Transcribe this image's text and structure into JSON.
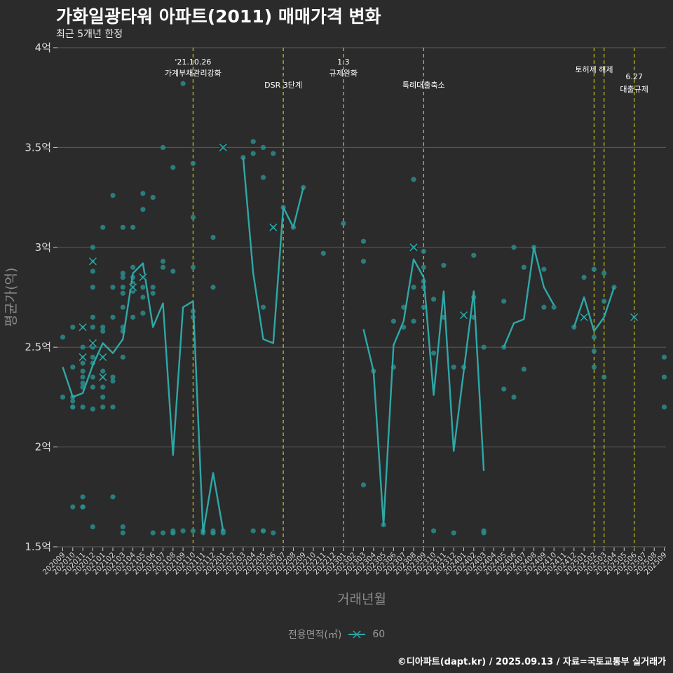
{
  "title": "가화일광타워 아파트(2011) 매매가격 변화",
  "subtitle": "최근 5개년 한정",
  "caption": "©디아파트(dapt.kr) / 2025.09.13 / 자료=국토교통부 실거래가",
  "legend": {
    "title": "전용면적(㎡)",
    "label": "60"
  },
  "colors": {
    "background": "#2b2b2b",
    "series": "#2fa7a7",
    "point": "#2b8c8c",
    "grid": "#5d5d5d",
    "event": "#c8c81e",
    "highlight": "#1a1a1a"
  },
  "chart_data": {
    "type": "line",
    "title": "가화일광타워 아파트(2011) 매매가격 변화",
    "xlabel": "거래년월",
    "ylabel": "평균가(억)",
    "ylim": [
      1.5,
      4.0
    ],
    "yticks": [
      {
        "value": 1.5,
        "label": "1.5억"
      },
      {
        "value": 2.0,
        "label": "2억"
      },
      {
        "value": 2.5,
        "label": "2.5억"
      },
      {
        "value": 3.0,
        "label": "3억"
      },
      {
        "value": 3.5,
        "label": "3.5억"
      },
      {
        "value": 4.0,
        "label": "4억"
      }
    ],
    "categories": [
      "202009",
      "202010",
      "202011",
      "202012",
      "202101",
      "202102",
      "202103",
      "202104",
      "202105",
      "202106",
      "202107",
      "202108",
      "202109",
      "202110",
      "202111",
      "202112",
      "202201",
      "202202",
      "202203",
      "202204",
      "202205",
      "202206",
      "202207",
      "202208",
      "202209",
      "202210",
      "202211",
      "202212",
      "202301",
      "202302",
      "202303",
      "202304",
      "202305",
      "202306",
      "202307",
      "202308",
      "202309",
      "202310",
      "202311",
      "202312",
      "202401",
      "202402",
      "202403",
      "202404",
      "202405",
      "202406",
      "202407",
      "202408",
      "202409",
      "202410",
      "202411",
      "202412",
      "202501",
      "202502",
      "202503",
      "202504",
      "202505",
      "202506",
      "202507",
      "202508",
      "202509"
    ],
    "series": [
      {
        "name": "60",
        "values": [
          2.4,
          2.25,
          2.27,
          2.41,
          2.52,
          2.47,
          2.54,
          2.87,
          2.92,
          2.6,
          2.72,
          1.96,
          2.7,
          2.73,
          1.57,
          1.87,
          1.58,
          null,
          3.45,
          2.87,
          2.54,
          2.52,
          3.2,
          3.1,
          3.3,
          null,
          null,
          null,
          null,
          null,
          2.59,
          2.38,
          1.61,
          2.51,
          2.63,
          2.94,
          2.85,
          2.26,
          2.78,
          1.98,
          2.38,
          2.78,
          1.88,
          null,
          2.5,
          2.62,
          2.64,
          3.0,
          2.8,
          2.71,
          null,
          2.6,
          2.75,
          2.58,
          2.65,
          2.8,
          null,
          null,
          null,
          null,
          null
        ]
      }
    ],
    "points": [
      [
        0,
        2.55
      ],
      [
        0,
        2.25
      ],
      [
        1,
        2.6
      ],
      [
        1,
        2.4
      ],
      [
        1,
        2.25
      ],
      [
        1,
        2.23
      ],
      [
        1,
        2.2
      ],
      [
        1,
        2.2
      ],
      [
        1,
        1.7
      ],
      [
        2,
        2.6
      ],
      [
        2,
        2.5
      ],
      [
        2,
        2.45
      ],
      [
        2,
        2.42
      ],
      [
        2,
        2.38
      ],
      [
        2,
        2.35
      ],
      [
        2,
        2.32
      ],
      [
        2,
        2.3
      ],
      [
        2,
        2.2
      ],
      [
        2,
        1.75
      ],
      [
        2,
        1.7
      ],
      [
        2,
        1.7
      ],
      [
        3,
        3.0
      ],
      [
        3,
        2.93
      ],
      [
        3,
        2.88
      ],
      [
        3,
        2.8
      ],
      [
        3,
        2.65
      ],
      [
        3,
        2.6
      ],
      [
        3,
        2.5
      ],
      [
        3,
        2.45
      ],
      [
        3,
        2.42
      ],
      [
        3,
        2.35
      ],
      [
        3,
        2.3
      ],
      [
        3,
        2.19
      ],
      [
        3,
        1.6
      ],
      [
        4,
        3.1
      ],
      [
        4,
        2.6
      ],
      [
        4,
        2.58
      ],
      [
        4,
        2.45
      ],
      [
        4,
        2.38
      ],
      [
        4,
        2.35
      ],
      [
        4,
        2.3
      ],
      [
        4,
        2.25
      ],
      [
        4,
        2.2
      ],
      [
        5,
        3.26
      ],
      [
        5,
        2.8
      ],
      [
        5,
        2.65
      ],
      [
        5,
        2.35
      ],
      [
        5,
        2.33
      ],
      [
        5,
        2.2
      ],
      [
        5,
        1.75
      ],
      [
        6,
        3.1
      ],
      [
        6,
        2.87
      ],
      [
        6,
        2.85
      ],
      [
        6,
        2.8
      ],
      [
        6,
        2.77
      ],
      [
        6,
        2.7
      ],
      [
        6,
        2.6
      ],
      [
        6,
        2.58
      ],
      [
        6,
        2.45
      ],
      [
        6,
        1.6
      ],
      [
        6,
        1.57
      ],
      [
        7,
        3.1
      ],
      [
        7,
        2.9
      ],
      [
        7,
        2.85
      ],
      [
        7,
        2.82
      ],
      [
        7,
        2.8
      ],
      [
        7,
        2.78
      ],
      [
        7,
        2.65
      ],
      [
        8,
        3.27
      ],
      [
        8,
        3.19
      ],
      [
        8,
        2.85
      ],
      [
        8,
        2.8
      ],
      [
        8,
        2.75
      ],
      [
        8,
        2.67
      ],
      [
        9,
        3.25
      ],
      [
        9,
        2.8
      ],
      [
        9,
        2.77
      ],
      [
        9,
        1.57
      ],
      [
        10,
        3.5
      ],
      [
        10,
        2.93
      ],
      [
        10,
        2.9
      ],
      [
        10,
        1.57
      ],
      [
        11,
        3.4
      ],
      [
        11,
        2.88
      ],
      [
        11,
        1.58
      ],
      [
        11,
        1.57
      ],
      [
        11,
        1.57
      ],
      [
        12,
        3.82
      ],
      [
        12,
        1.58
      ],
      [
        13,
        3.42
      ],
      [
        13,
        3.15
      ],
      [
        13,
        2.9
      ],
      [
        13,
        2.65
      ],
      [
        13,
        2.68
      ],
      [
        13,
        1.58
      ],
      [
        14,
        1.58
      ],
      [
        14,
        1.57
      ],
      [
        15,
        3.05
      ],
      [
        15,
        2.8
      ],
      [
        15,
        1.58
      ],
      [
        15,
        1.57
      ],
      [
        15,
        1.57
      ],
      [
        16,
        3.5
      ],
      [
        16,
        1.58
      ],
      [
        16,
        1.57
      ],
      [
        18,
        3.45
      ],
      [
        19,
        3.53
      ],
      [
        19,
        3.47
      ],
      [
        19,
        1.58
      ],
      [
        20,
        3.5
      ],
      [
        20,
        3.35
      ],
      [
        20,
        2.7
      ],
      [
        20,
        1.58
      ],
      [
        20,
        1.58
      ],
      [
        21,
        3.47
      ],
      [
        21,
        3.1
      ],
      [
        21,
        1.57
      ],
      [
        22,
        3.2
      ],
      [
        23,
        3.1
      ],
      [
        24,
        3.3
      ],
      [
        26,
        2.97
      ],
      [
        28,
        3.12
      ],
      [
        30,
        3.03
      ],
      [
        30,
        2.93
      ],
      [
        30,
        1.81
      ],
      [
        31,
        2.38
      ],
      [
        32,
        1.61
      ],
      [
        33,
        2.63
      ],
      [
        33,
        2.4
      ],
      [
        34,
        2.7
      ],
      [
        34,
        2.6
      ],
      [
        35,
        3.34
      ],
      [
        35,
        3.0
      ],
      [
        35,
        2.8
      ],
      [
        35,
        2.63
      ],
      [
        36,
        2.98
      ],
      [
        36,
        2.9
      ],
      [
        36,
        2.83
      ],
      [
        36,
        2.8
      ],
      [
        36,
        2.7
      ],
      [
        37,
        2.74
      ],
      [
        37,
        2.47
      ],
      [
        37,
        1.58
      ],
      [
        38,
        2.91
      ],
      [
        38,
        2.65
      ],
      [
        39,
        2.4
      ],
      [
        39,
        1.57
      ],
      [
        40,
        2.66
      ],
      [
        40,
        2.4
      ],
      [
        41,
        2.96
      ],
      [
        41,
        2.75
      ],
      [
        41,
        2.65
      ],
      [
        42,
        2.5
      ],
      [
        42,
        1.58
      ],
      [
        42,
        1.57
      ],
      [
        44,
        2.73
      ],
      [
        44,
        2.5
      ],
      [
        44,
        2.29
      ],
      [
        45,
        3.0
      ],
      [
        45,
        2.25
      ],
      [
        46,
        2.9
      ],
      [
        46,
        2.39
      ],
      [
        47,
        3.0
      ],
      [
        48,
        2.89
      ],
      [
        48,
        2.7
      ],
      [
        49,
        2.7
      ],
      [
        51,
        2.6
      ],
      [
        52,
        2.85
      ],
      [
        52,
        2.65
      ],
      [
        53,
        2.89
      ],
      [
        53,
        2.55
      ],
      [
        53,
        2.48
      ],
      [
        53,
        2.4
      ],
      [
        54,
        2.87
      ],
      [
        54,
        2.73
      ],
      [
        54,
        2.35
      ],
      [
        55,
        2.8
      ],
      [
        57,
        2.65
      ],
      [
        60,
        2.45
      ],
      [
        60,
        2.35
      ],
      [
        60,
        2.2
      ]
    ],
    "highlights": [
      [
        2,
        2.6
      ],
      [
        2,
        2.45
      ],
      [
        3,
        2.93
      ],
      [
        3,
        2.52
      ],
      [
        4,
        2.45
      ],
      [
        4,
        2.35
      ],
      [
        7,
        2.8
      ],
      [
        8,
        2.85
      ],
      [
        16,
        3.5
      ],
      [
        21,
        3.1
      ],
      [
        35,
        3.0
      ],
      [
        40,
        2.66
      ],
      [
        52,
        2.65
      ],
      [
        57,
        2.65
      ]
    ],
    "events": [
      {
        "x": 13,
        "lines": [
          "'21.10.26",
          "가계부채관리강화"
        ],
        "row": 0
      },
      {
        "x": 22,
        "lines": [
          "DSR 3단계"
        ],
        "row": 1
      },
      {
        "x": 28,
        "lines": [
          "1.3",
          "규제완화"
        ],
        "row": 0
      },
      {
        "x": 36,
        "lines": [
          "특례대출축소"
        ],
        "row": 1
      },
      {
        "x": 53,
        "lines": [
          "토허제 해제"
        ],
        "row": 0
      },
      {
        "x": 54,
        "lines": [],
        "row": 0
      },
      {
        "x": 57,
        "lines": [
          "6.27",
          "대출규제"
        ],
        "row": 2
      }
    ]
  }
}
